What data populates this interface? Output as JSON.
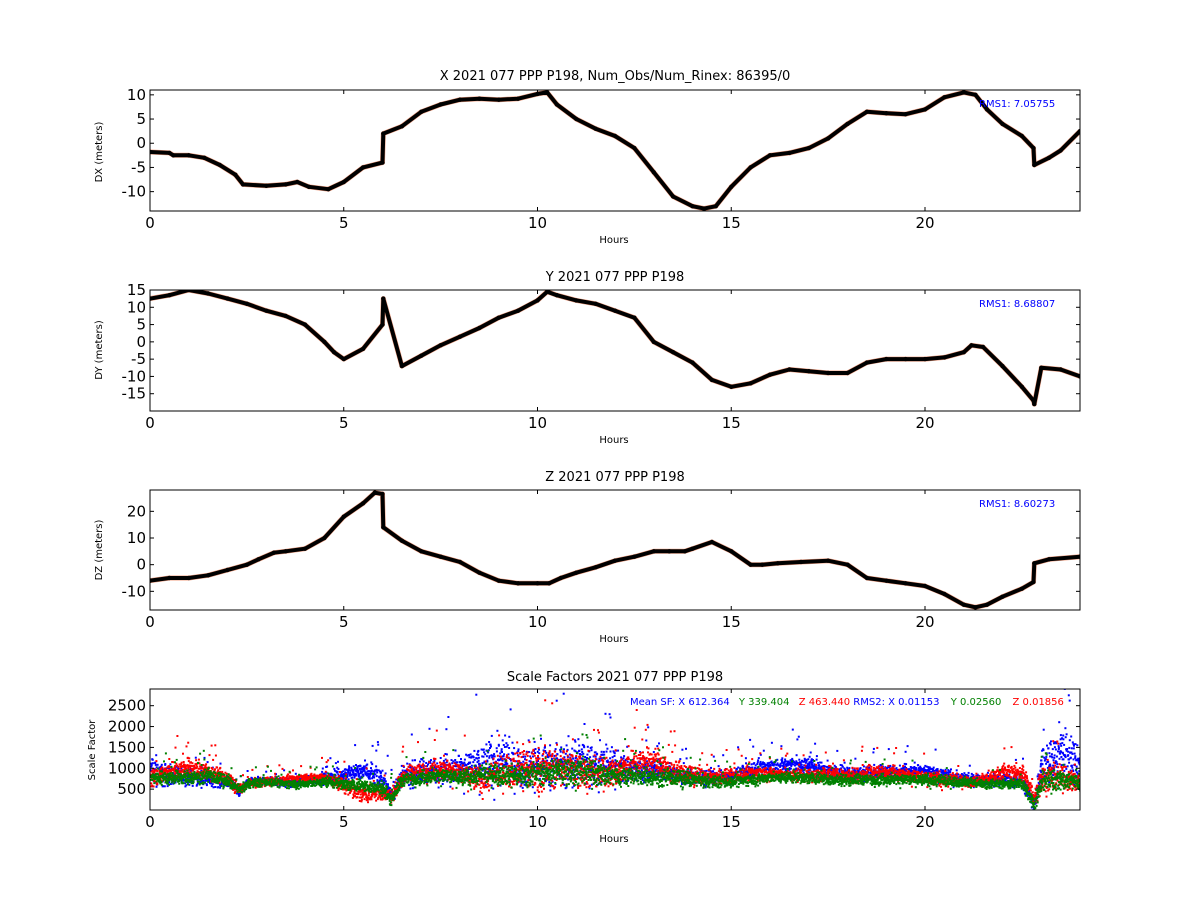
{
  "colors": {
    "black": "#000000",
    "orange": "#e8501a",
    "blue": "#0000ff",
    "green": "#008000",
    "red": "#ff0000"
  },
  "chart_data": [
    {
      "type": "line",
      "title": "X 2021 077 PPP  P198, Num_Obs/Num_Rinex: 86395/0",
      "xlabel": "Hours",
      "ylabel": "DX (meters)",
      "xlim": [
        0,
        24
      ],
      "ylim": [
        -14,
        11
      ],
      "xticks": [
        "0",
        "5",
        "10",
        "15",
        "20"
      ],
      "yticks": [
        "10",
        "5",
        "0",
        "-5",
        "-10"
      ],
      "annotation": "RMS1:  7.05755",
      "series": [
        {
          "x": [
            0,
            0.5,
            0.6,
            1.0,
            1.4,
            1.8,
            2.2,
            2.4,
            3.0,
            3.5,
            3.8,
            4.1,
            4.6,
            5.0,
            5.5,
            6.0,
            6.02,
            6.5,
            7.0,
            7.5,
            8.0,
            8.5,
            9.0,
            9.5,
            10.0,
            10.25,
            10.5,
            11.0,
            11.5,
            12.0,
            12.5,
            13.0,
            13.5,
            14.0,
            14.3,
            14.6,
            15.0,
            15.5,
            16.0,
            16.5,
            17.0,
            17.5,
            18.0,
            18.5,
            19.0,
            19.5,
            20.0,
            20.5,
            21.0,
            21.3,
            21.6,
            22.0,
            22.5,
            22.8,
            22.82,
            23.2,
            23.5,
            24.0
          ],
          "y": [
            -1.8,
            -2.0,
            -2.5,
            -2.5,
            -3.0,
            -4.5,
            -6.5,
            -8.5,
            -8.8,
            -8.5,
            -8.0,
            -9.0,
            -9.5,
            -8.0,
            -5.0,
            -4.0,
            2.0,
            3.5,
            6.5,
            8.0,
            9.0,
            9.2,
            9.0,
            9.2,
            10.2,
            10.5,
            8.0,
            5.0,
            3.0,
            1.5,
            -1.0,
            -6.0,
            -11.0,
            -13.0,
            -13.5,
            -13.0,
            -9.0,
            -5.0,
            -2.5,
            -2.0,
            -1.0,
            1.0,
            4.0,
            6.5,
            6.2,
            6.0,
            7.0,
            9.5,
            10.5,
            10.0,
            7.0,
            4.0,
            1.5,
            -1.0,
            -4.5,
            -3.0,
            -1.5,
            2.5
          ]
        }
      ]
    },
    {
      "type": "line",
      "title": "Y 2021 077 PPP  P198",
      "xlabel": "Hours",
      "ylabel": "DY (meters)",
      "xlim": [
        0,
        24
      ],
      "ylim": [
        -20,
        15
      ],
      "xticks": [
        "0",
        "5",
        "10",
        "15",
        "20"
      ],
      "yticks": [
        "15",
        "10",
        "5",
        "0",
        "-5",
        "-10",
        "-15"
      ],
      "annotation": "RMS1:  8.68807",
      "series": [
        {
          "x": [
            0,
            0.5,
            1.0,
            1.5,
            2.0,
            2.5,
            3.0,
            3.5,
            4.0,
            4.5,
            4.75,
            5.0,
            5.5,
            6.0,
            6.02,
            6.5,
            7.0,
            7.5,
            8.0,
            8.5,
            9.0,
            9.5,
            10.0,
            10.25,
            10.5,
            11.0,
            11.5,
            12.0,
            12.5,
            13.0,
            13.5,
            14.0,
            14.5,
            15.0,
            15.5,
            16.0,
            16.5,
            17.0,
            17.5,
            18.0,
            18.5,
            19.0,
            19.5,
            20.0,
            20.5,
            21.0,
            21.2,
            21.5,
            22.0,
            22.5,
            22.8,
            22.82,
            23.0,
            23.5,
            24.0
          ],
          "y": [
            12.5,
            13.5,
            15.0,
            14.0,
            12.5,
            11.0,
            9.0,
            7.5,
            5.0,
            0.0,
            -3.0,
            -5.0,
            -2.0,
            5.0,
            12.5,
            -7.0,
            -4.0,
            -1.0,
            1.5,
            4.0,
            7.0,
            9.0,
            12.0,
            14.5,
            13.5,
            12.0,
            11.0,
            9.0,
            7.0,
            0.0,
            -3.0,
            -6.0,
            -11.0,
            -13.0,
            -12.0,
            -9.5,
            -8.0,
            -8.5,
            -9.0,
            -9.0,
            -6.0,
            -5.0,
            -5.0,
            -5.0,
            -4.5,
            -3.0,
            -1.0,
            -1.5,
            -7.0,
            -13.0,
            -17.0,
            -18.0,
            -7.5,
            -8.0,
            -10.0
          ]
        }
      ]
    },
    {
      "type": "line",
      "title": "Z 2021 077 PPP  P198",
      "xlabel": "Hours",
      "ylabel": "DZ (meters)",
      "xlim": [
        0,
        24
      ],
      "ylim": [
        -17,
        28
      ],
      "xticks": [
        "0",
        "5",
        "10",
        "15",
        "20"
      ],
      "yticks": [
        "20",
        "10",
        "0",
        "-10"
      ],
      "annotation": "RMS1:  8.60273",
      "series": [
        {
          "x": [
            0,
            0.5,
            1.0,
            1.5,
            2.0,
            2.5,
            2.8,
            3.2,
            3.5,
            4.0,
            4.5,
            5.0,
            5.5,
            5.8,
            6.0,
            6.02,
            6.5,
            7.0,
            7.5,
            8.0,
            8.5,
            9.0,
            9.5,
            10.0,
            10.3,
            10.6,
            11.0,
            11.5,
            12.0,
            12.5,
            13.0,
            13.4,
            13.8,
            14.0,
            14.5,
            15.0,
            15.5,
            15.8,
            16.2,
            16.8,
            17.5,
            18.0,
            18.5,
            19.0,
            19.5,
            20.0,
            20.5,
            21.0,
            21.3,
            21.6,
            22.0,
            22.5,
            22.8,
            22.82,
            23.2,
            24.0
          ],
          "y": [
            -6.0,
            -5.0,
            -5.0,
            -4.0,
            -2.0,
            0.0,
            2.0,
            4.5,
            5.0,
            6.0,
            10.0,
            18.0,
            23.0,
            27.0,
            26.5,
            14.0,
            9.0,
            5.0,
            3.0,
            1.0,
            -3.0,
            -6.0,
            -7.0,
            -7.0,
            -7.0,
            -5.0,
            -3.0,
            -1.0,
            1.5,
            3.0,
            5.0,
            5.0,
            5.0,
            6.0,
            8.5,
            5.0,
            0.0,
            0.0,
            0.5,
            1.0,
            1.5,
            0.0,
            -5.0,
            -6.0,
            -7.0,
            -8.0,
            -11.0,
            -15.0,
            -16.0,
            -15.0,
            -12.0,
            -9.0,
            -6.5,
            0.5,
            2.0,
            3.0
          ]
        }
      ]
    },
    {
      "type": "scatter",
      "title": "Scale Factors 2021 077 PPP  P198",
      "xlabel": "Hours",
      "ylabel": "Scale Factor",
      "xlim": [
        0,
        24
      ],
      "ylim": [
        0,
        2900
      ],
      "xticks": [
        "0",
        "5",
        "10",
        "15",
        "20"
      ],
      "yticks": [
        "2500",
        "2000",
        "1500",
        "1000",
        "500"
      ],
      "annotations": [
        {
          "text": "Mean SF: X 612.364",
          "color": "#0000ff"
        },
        {
          "text": "Y 339.404",
          "color": "#008000"
        },
        {
          "text": "Z 463.440",
          "color": "#ff0000"
        },
        {
          "text": "RMS2: X  0.01153",
          "color": "#0000ff"
        },
        {
          "text": "Y  0.02560",
          "color": "#008000"
        },
        {
          "text": "Z  0.01856",
          "color": "#ff0000"
        }
      ],
      "series": [
        {
          "name": "X",
          "color": "#0000ff",
          "x": [
            0,
            0.5,
            1,
            1.5,
            2,
            2.3,
            2.5,
            3,
            3.5,
            4,
            4.5,
            5,
            5.5,
            6,
            6.2,
            6.5,
            7,
            7.5,
            8,
            8.5,
            9,
            9.5,
            10,
            10.5,
            11,
            11.5,
            12,
            12.5,
            13,
            13.5,
            14,
            14.5,
            15,
            15.5,
            16,
            16.5,
            17,
            17.5,
            18,
            18.5,
            19,
            19.5,
            20,
            20.5,
            21,
            21.5,
            22,
            22.5,
            22.8,
            23,
            23.5,
            24
          ],
          "center": [
            950,
            850,
            800,
            750,
            700,
            450,
            700,
            720,
            680,
            700,
            800,
            850,
            1000,
            700,
            400,
            800,
            950,
            1000,
            1000,
            1100,
            1200,
            1050,
            1100,
            1100,
            1150,
            1100,
            1050,
            1000,
            1000,
            900,
            800,
            800,
            800,
            1000,
            1050,
            1100,
            1100,
            950,
            900,
            900,
            950,
            950,
            950,
            850,
            750,
            750,
            750,
            700,
            150,
            1100,
            1400,
            1100
          ],
          "spread": [
            650,
            300,
            250,
            250,
            200,
            150,
            150,
            150,
            150,
            150,
            200,
            250,
            300,
            400,
            300,
            400,
            450,
            500,
            550,
            800,
            900,
            700,
            800,
            700,
            900,
            700,
            650,
            500,
            400,
            300,
            250,
            250,
            250,
            300,
            300,
            350,
            300,
            250,
            250,
            250,
            250,
            250,
            250,
            250,
            200,
            200,
            200,
            250,
            300,
            700,
            900,
            600
          ]
        },
        {
          "name": "Z",
          "color": "#ff0000",
          "x": [
            0,
            0.5,
            1,
            1.5,
            2,
            2.3,
            2.5,
            3,
            3.5,
            4,
            4.5,
            5,
            5.5,
            6,
            6.2,
            6.5,
            7,
            7.5,
            8,
            8.5,
            9,
            9.5,
            10,
            10.5,
            11,
            11.5,
            12,
            12.5,
            13,
            13.5,
            14,
            14.5,
            15,
            15.5,
            16,
            16.5,
            17,
            17.5,
            18,
            18.5,
            19,
            19.5,
            20,
            20.5,
            21,
            21.5,
            22,
            22.5,
            22.8,
            23,
            23.5,
            24
          ],
          "center": [
            800,
            950,
            1050,
            950,
            750,
            500,
            650,
            700,
            750,
            800,
            800,
            600,
            400,
            450,
            350,
            850,
            950,
            1000,
            900,
            750,
            900,
            1100,
            1000,
            1050,
            1000,
            900,
            950,
            1150,
            1200,
            950,
            850,
            800,
            850,
            900,
            900,
            850,
            850,
            900,
            850,
            900,
            950,
            850,
            800,
            750,
            700,
            750,
            950,
            900,
            300,
            800,
            800,
            700
          ],
          "spread": [
            400,
            350,
            350,
            300,
            250,
            150,
            150,
            150,
            150,
            150,
            200,
            300,
            300,
            300,
            250,
            300,
            350,
            400,
            400,
            450,
            550,
            700,
            800,
            650,
            600,
            550,
            550,
            550,
            500,
            400,
            300,
            250,
            250,
            250,
            250,
            250,
            250,
            250,
            250,
            300,
            250,
            250,
            250,
            250,
            200,
            200,
            250,
            300,
            300,
            500,
            450,
            400
          ]
        },
        {
          "name": "Y",
          "color": "#008000",
          "x": [
            0,
            0.5,
            1,
            1.5,
            2,
            2.3,
            2.5,
            3,
            3.5,
            4,
            4.5,
            5,
            5.5,
            6,
            6.2,
            6.5,
            7,
            7.5,
            8,
            8.5,
            9,
            9.5,
            10,
            10.5,
            11,
            11.5,
            12,
            12.5,
            13,
            13.5,
            14,
            14.5,
            15,
            15.5,
            16,
            16.5,
            17,
            17.5,
            18,
            18.5,
            19,
            19.5,
            20,
            20.5,
            21,
            21.5,
            22,
            22.5,
            22.8,
            23,
            23.5,
            24
          ],
          "center": [
            800,
            800,
            800,
            850,
            700,
            500,
            650,
            700,
            650,
            650,
            700,
            650,
            600,
            550,
            300,
            750,
            800,
            850,
            800,
            850,
            900,
            850,
            900,
            950,
            950,
            900,
            850,
            850,
            800,
            800,
            750,
            700,
            700,
            750,
            800,
            800,
            800,
            750,
            750,
            750,
            750,
            750,
            750,
            700,
            700,
            650,
            650,
            650,
            150,
            700,
            750,
            700
          ],
          "spread": [
            250,
            250,
            250,
            250,
            200,
            150,
            150,
            150,
            150,
            150,
            200,
            200,
            200,
            250,
            250,
            250,
            250,
            250,
            300,
            300,
            400,
            350,
            400,
            450,
            500,
            450,
            400,
            350,
            300,
            300,
            250,
            200,
            200,
            200,
            200,
            200,
            200,
            200,
            200,
            200,
            200,
            200,
            200,
            200,
            150,
            150,
            150,
            200,
            250,
            350,
            400,
            300
          ]
        }
      ]
    }
  ]
}
